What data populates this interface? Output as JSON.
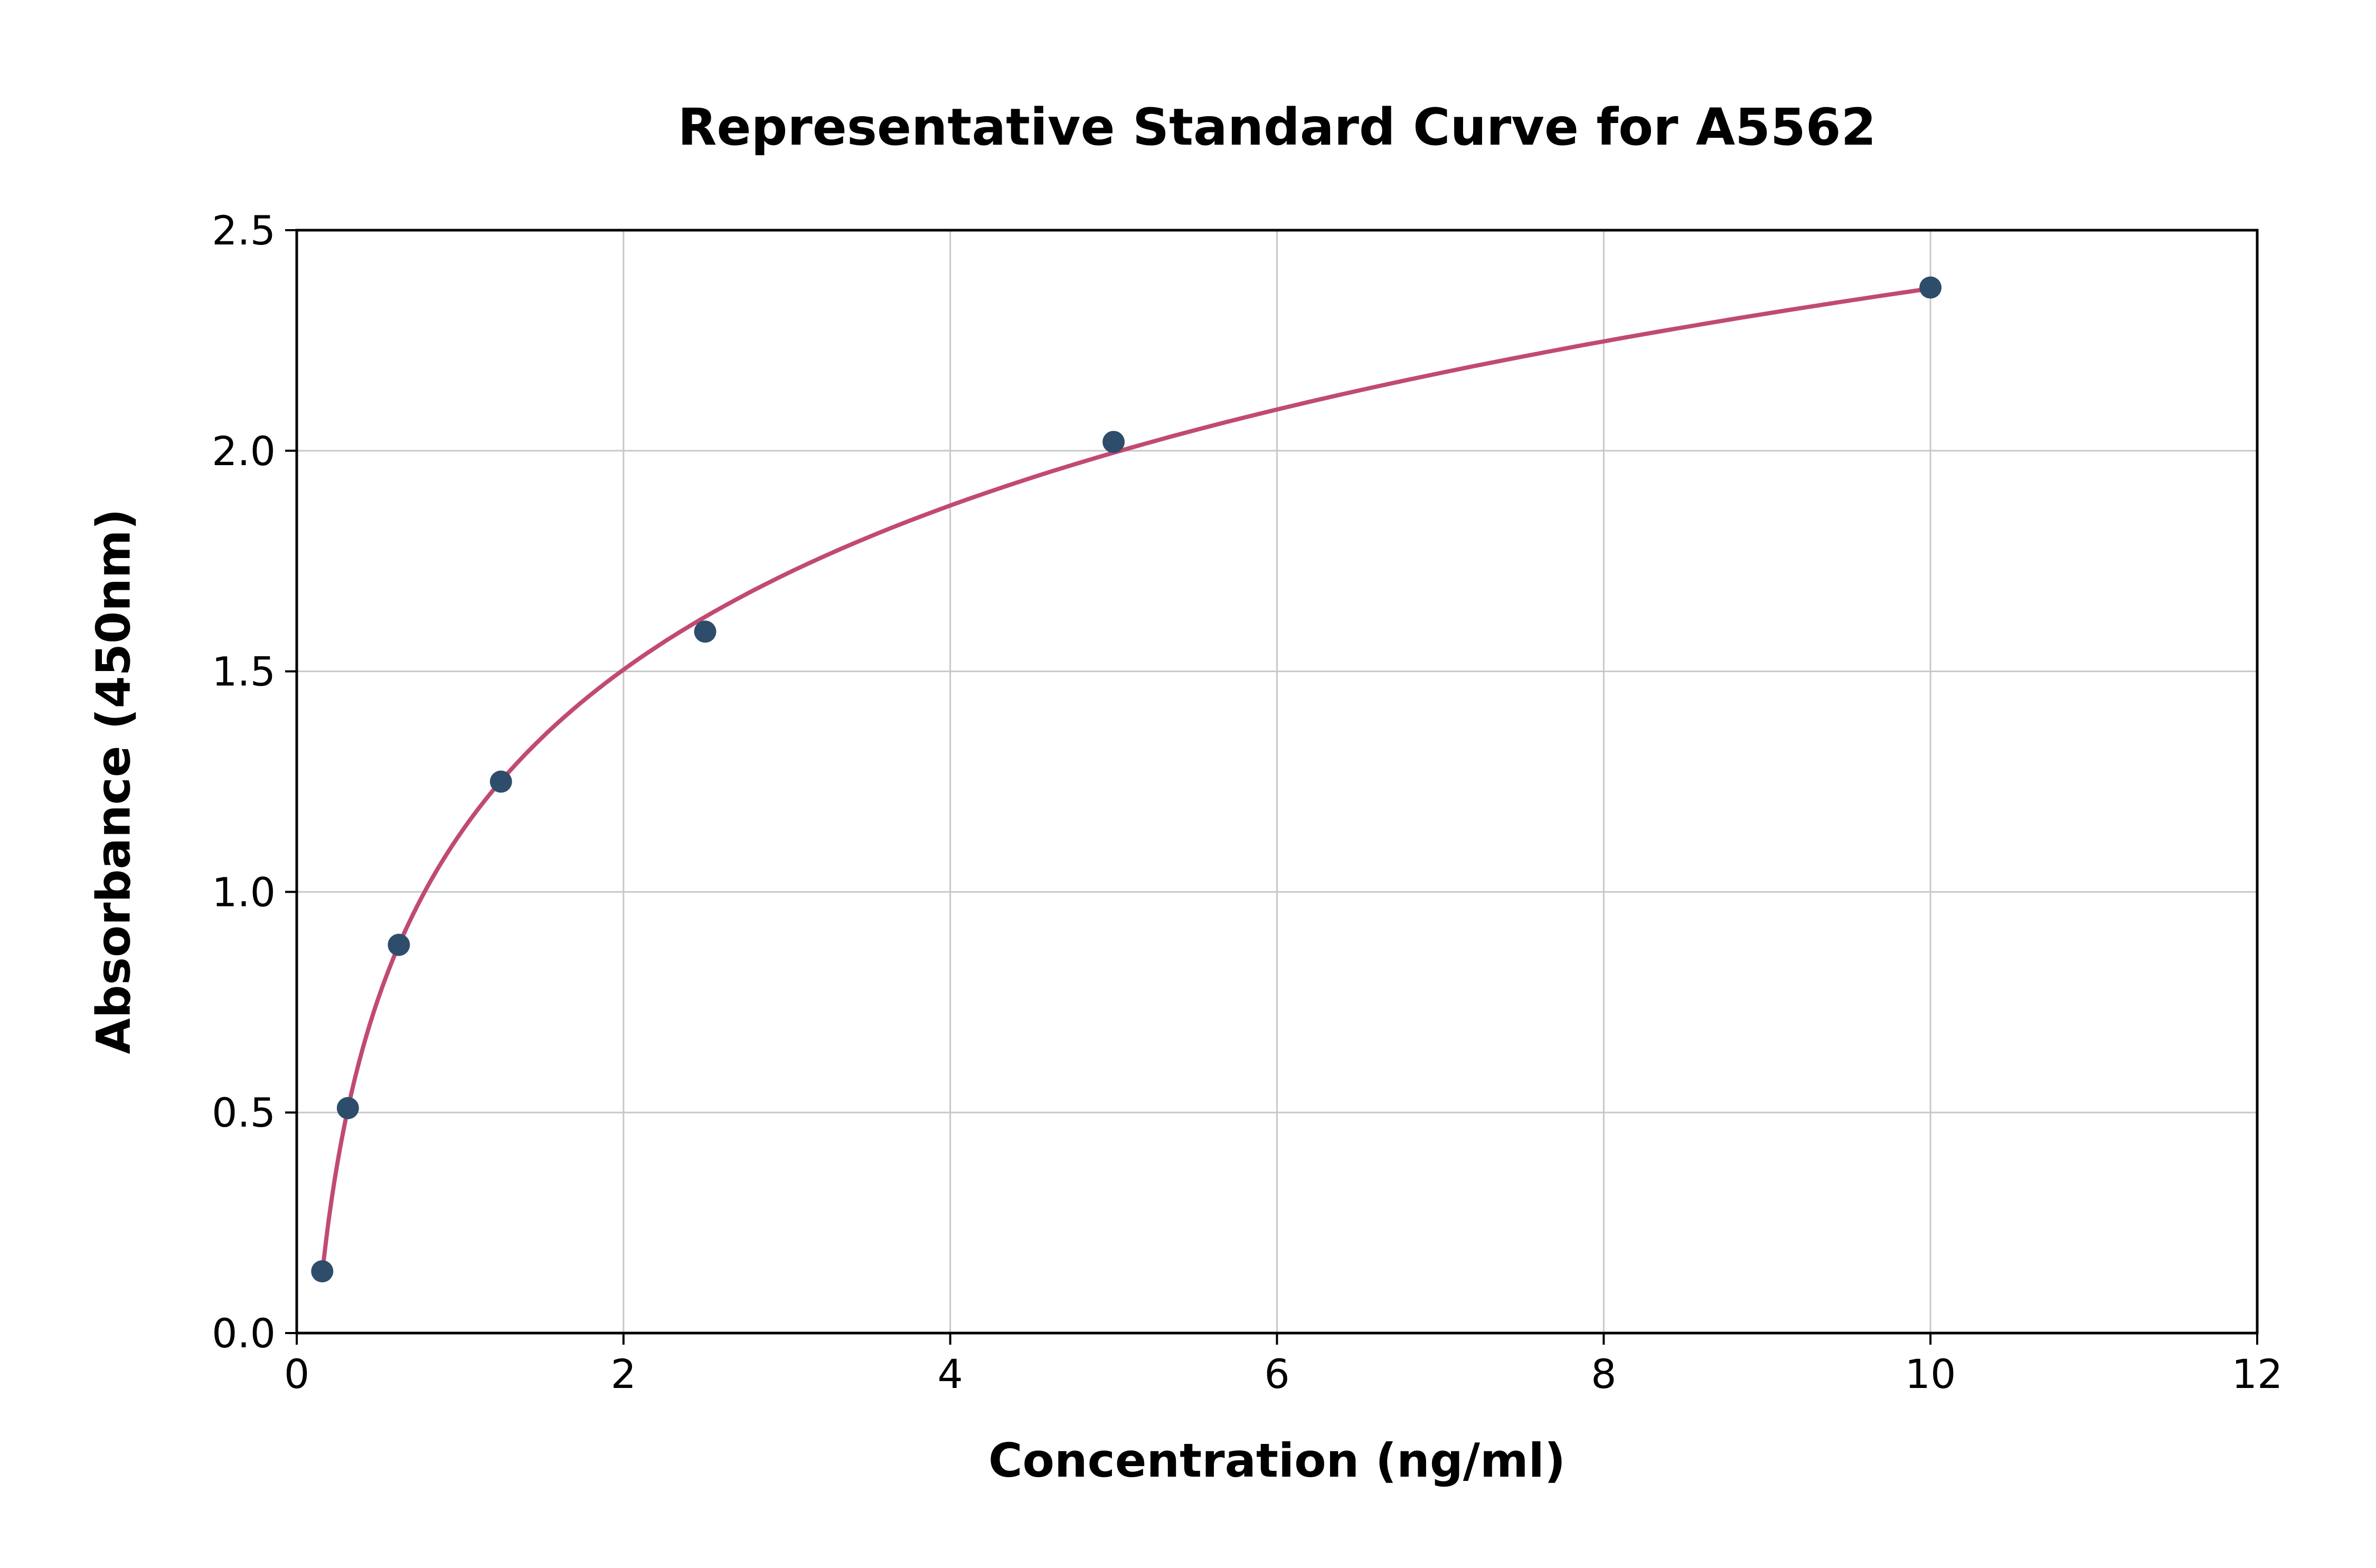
{
  "chart_data": {
    "type": "scatter",
    "title": "Representative Standard Curve for A5562",
    "xlabel": "Concentration (ng/ml)",
    "ylabel": "Absorbance (450nm)",
    "xlim": [
      0,
      12
    ],
    "ylim": [
      0,
      2.5
    ],
    "x_ticks": [
      0,
      2,
      4,
      6,
      8,
      10,
      12
    ],
    "y_ticks": [
      0.0,
      0.5,
      1.0,
      1.5,
      2.0,
      2.5
    ],
    "grid": true,
    "legend": "none",
    "points": {
      "x": [
        0.156,
        0.313,
        0.625,
        1.25,
        2.5,
        5,
        10
      ],
      "y": [
        0.14,
        0.51,
        0.88,
        1.25,
        1.59,
        2.02,
        2.37
      ]
    },
    "fit_curve": {
      "model": "logarithmic",
      "drawn_from_x": 0.156,
      "drawn_to_x": 10
    },
    "colors": {
      "point_color": "#2e4d6b",
      "curve_color": "#c14a72",
      "grid_color": "#c8c8c8",
      "axis_color": "#000000",
      "background": "#ffffff"
    }
  }
}
